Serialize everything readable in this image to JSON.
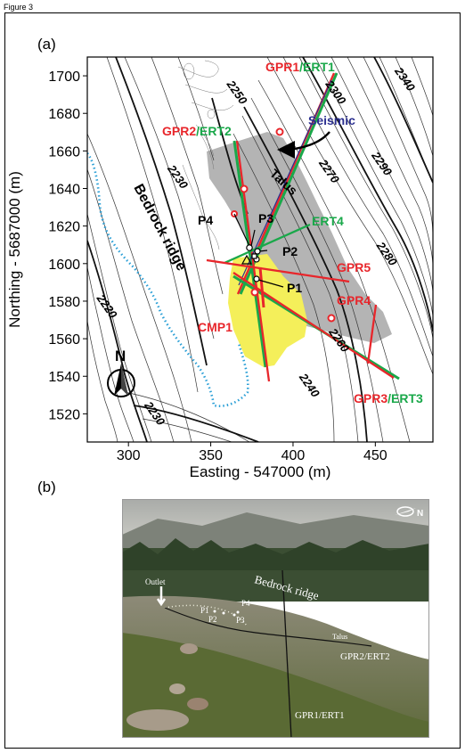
{
  "figure": {
    "label": "Figure 3",
    "panel_a": "(a)",
    "panel_b": "(b)"
  },
  "map": {
    "xlabel": "Easting - 547000 (m)",
    "ylabel": "Northing - 5687000 (m)",
    "xlim": [
      275,
      485
    ],
    "ylim": [
      1505,
      1710
    ],
    "xticks": [
      300,
      350,
      400,
      450
    ],
    "yticks": [
      1520,
      1540,
      1560,
      1580,
      1600,
      1620,
      1640,
      1660,
      1680,
      1700
    ],
    "colors": {
      "gpr": "#e8262b",
      "ert": "#1aa84a",
      "seismic": "#2b2f8f",
      "talus": "#b4b4b4",
      "sediment": "#f4ef5a",
      "stream": "#2a9fd6",
      "contour": "#222222"
    },
    "contour_labels": [
      {
        "text": "2340",
        "x": 466,
        "y": 1697
      },
      {
        "text": "2300",
        "x": 424,
        "y": 1690
      },
      {
        "text": "2290",
        "x": 452,
        "y": 1652
      },
      {
        "text": "2270",
        "x": 420,
        "y": 1648
      },
      {
        "text": "2280",
        "x": 455,
        "y": 1604
      },
      {
        "text": "2260",
        "x": 426,
        "y": 1558
      },
      {
        "text": "2240",
        "x": 408,
        "y": 1534
      },
      {
        "text": "2250",
        "x": 364,
        "y": 1690
      },
      {
        "text": "2230",
        "x": 328,
        "y": 1645
      },
      {
        "text": "2220",
        "x": 285,
        "y": 1576
      },
      {
        "text": "2230",
        "x": 314,
        "y": 1519
      }
    ],
    "labels": {
      "bedrock": "Bedrock ridge",
      "talus": "Talus",
      "seismic": "Seismic",
      "gpr1": "GPR1",
      "ert1": "ERT1",
      "gpr2": "GPR2",
      "ert2": "ERT2",
      "gpr3": "GPR3",
      "ert3": "ERT3",
      "ert4": "ERT4",
      "gpr4": "GPR4",
      "gpr5": "GPR5",
      "cmp1": "CMP1",
      "slash": "/",
      "p1": "P1",
      "p2": "P2",
      "p3": "P3",
      "p4": "P4",
      "north": "N"
    }
  },
  "photo": {
    "outlet": "Outlet",
    "bedrock": "Bedrock ridge",
    "talus": "Talus",
    "gpr2_ert2": "GPR2/ERT2",
    "gpr1_ert1": "GPR1/ERT1",
    "p1": "P1",
    "p2": "P2",
    "p3": "P3",
    "p4": "P4",
    "north": "N"
  }
}
